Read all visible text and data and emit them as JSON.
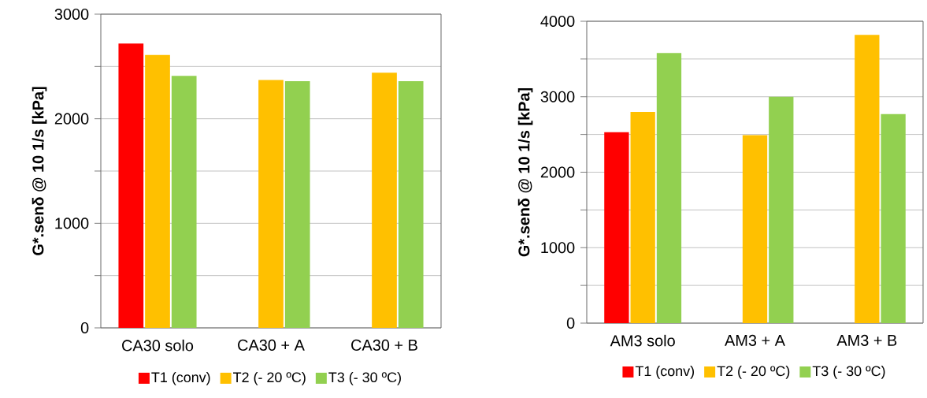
{
  "chart_data": [
    {
      "type": "bar",
      "ylabel": "G*.senδ @ 10  1/s [kPa]",
      "categories": [
        "CA30 solo",
        "CA30 + A",
        "CA30 + B"
      ],
      "series": [
        {
          "name": "T1 (conv)",
          "color": "#ff0000",
          "values": [
            2720,
            null,
            null
          ]
        },
        {
          "name": "T2 (- 20 ºC)",
          "color": "#ffc000",
          "values": [
            2610,
            2370,
            2440
          ]
        },
        {
          "name": "T3 (- 30 ºC)",
          "color": "#92d050",
          "values": [
            2410,
            2360,
            2360
          ]
        }
      ],
      "ylim": [
        0,
        3000
      ],
      "yticks": [
        0,
        {
          "value": 500,
          "label": null
        },
        1000,
        {
          "value": 1500,
          "label": null
        },
        2000,
        {
          "value": 2500,
          "label": null
        },
        3000
      ],
      "grid": "y",
      "legend": "bottom"
    },
    {
      "type": "bar",
      "ylabel": "G*.senδ @ 10 1/s [kPa]",
      "categories": [
        "AM3 solo",
        "AM3 + A",
        "AM3 + B"
      ],
      "series": [
        {
          "name": "T1 (conv)",
          "color": "#ff0000",
          "values": [
            2530,
            null,
            null
          ]
        },
        {
          "name": "T2 (- 20 ºC)",
          "color": "#ffc000",
          "values": [
            2800,
            2490,
            3820
          ]
        },
        {
          "name": "T3 (- 30 ºC)",
          "color": "#92d050",
          "values": [
            3580,
            3000,
            2770
          ]
        }
      ],
      "ylim": [
        0,
        4000
      ],
      "yticks": [
        0,
        {
          "value": 500,
          "label": null
        },
        1000,
        {
          "value": 1500,
          "label": null
        },
        2000,
        {
          "value": 2500,
          "label": null
        },
        3000,
        {
          "value": 3500,
          "label": null
        },
        4000
      ],
      "grid": "y",
      "legend": "bottom"
    }
  ]
}
